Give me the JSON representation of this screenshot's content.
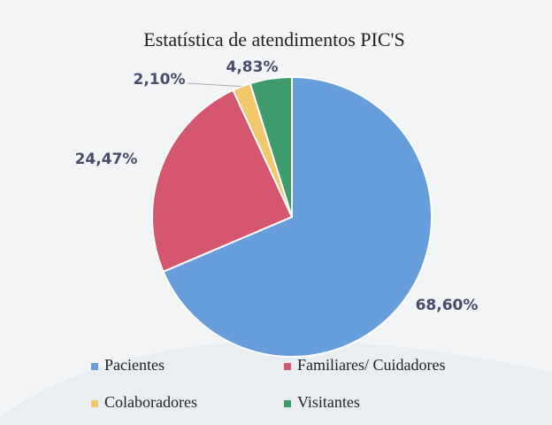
{
  "chart_data": {
    "type": "pie",
    "title": "Estatística de atendimentos PIC'S",
    "categories": [
      "Pacientes",
      "Familiares/ Cuidadores",
      "Colaboradores",
      "Visitantes"
    ],
    "values": [
      68.6,
      24.47,
      2.1,
      4.83
    ],
    "value_labels": [
      "68,60%",
      "24,47%",
      "2,10%",
      "4,83%"
    ],
    "colors": [
      "#679ddb",
      "#d5566f",
      "#f1c86c",
      "#3f9a6c"
    ]
  }
}
